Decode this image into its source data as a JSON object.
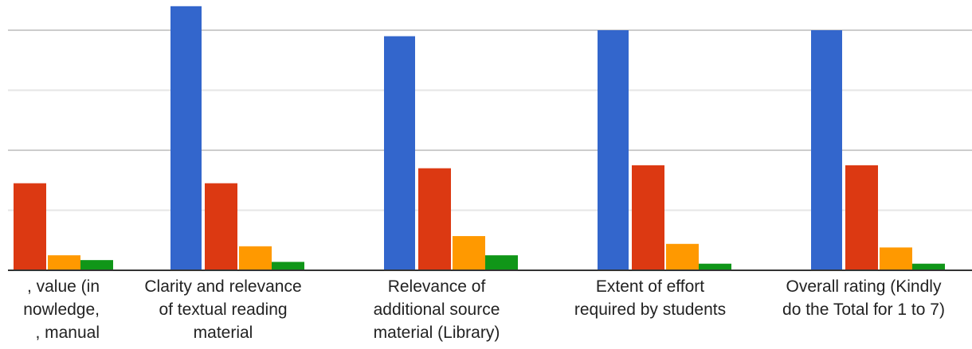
{
  "chart_data": {
    "type": "bar",
    "categories": [
      ", value (in\nnowledge,\n, manual",
      "Clarity and relevance\nof textual reading\nmaterial",
      "Relevance of\nadditional source\nmaterial (Library)",
      "Extent of effort\nrequired by students",
      "Overall rating (Kindly\ndo the Total for 1 to 7)"
    ],
    "series": [
      {
        "color": "#3366cc",
        "values": [
          null,
          4.4,
          3.9,
          4.0,
          4.0
        ]
      },
      {
        "color": "#dc3912",
        "values": [
          1.45,
          1.45,
          1.7,
          1.75,
          1.75
        ]
      },
      {
        "color": "#ff9900",
        "values": [
          0.25,
          0.4,
          0.57,
          0.44,
          0.38
        ]
      },
      {
        "color": "#109618",
        "values": [
          0.17,
          0.14,
          0.25,
          0.11,
          0.11
        ]
      }
    ],
    "ylim": [
      0,
      4.4
    ],
    "grid": true,
    "legend": "none"
  }
}
